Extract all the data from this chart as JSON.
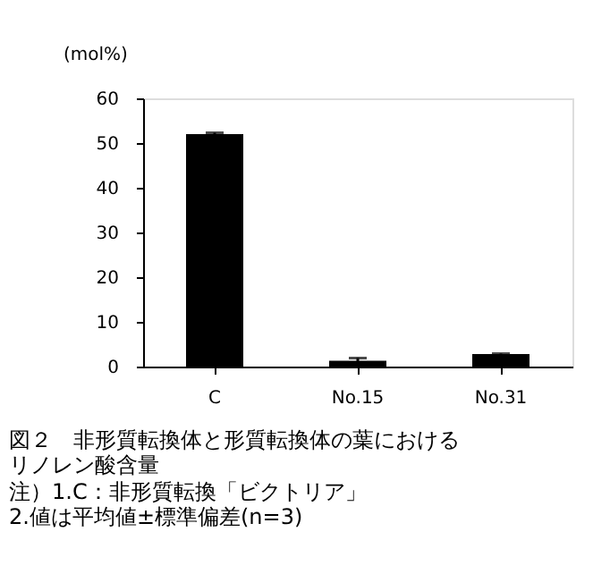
{
  "chart_data": {
    "type": "bar",
    "title": "図２　非形質転換体と形質転換体の葉におけるリノレン酸含量",
    "ylabel": "(mol%)",
    "categories": [
      "C",
      "No.15",
      "No.31"
    ],
    "values": [
      52,
      1.3,
      2.8
    ],
    "errors": [
      0.3,
      0.6,
      0.1
    ],
    "color": "#000000",
    "ylim": [
      0,
      60
    ],
    "yticks": [
      0,
      10,
      20,
      30,
      40,
      50,
      60
    ],
    "grid": false,
    "annotations": [
      "注）1.C：非形質転換「ビクトリア」",
      "　　2.値は平均値±標準偏差(n=3)"
    ]
  }
}
